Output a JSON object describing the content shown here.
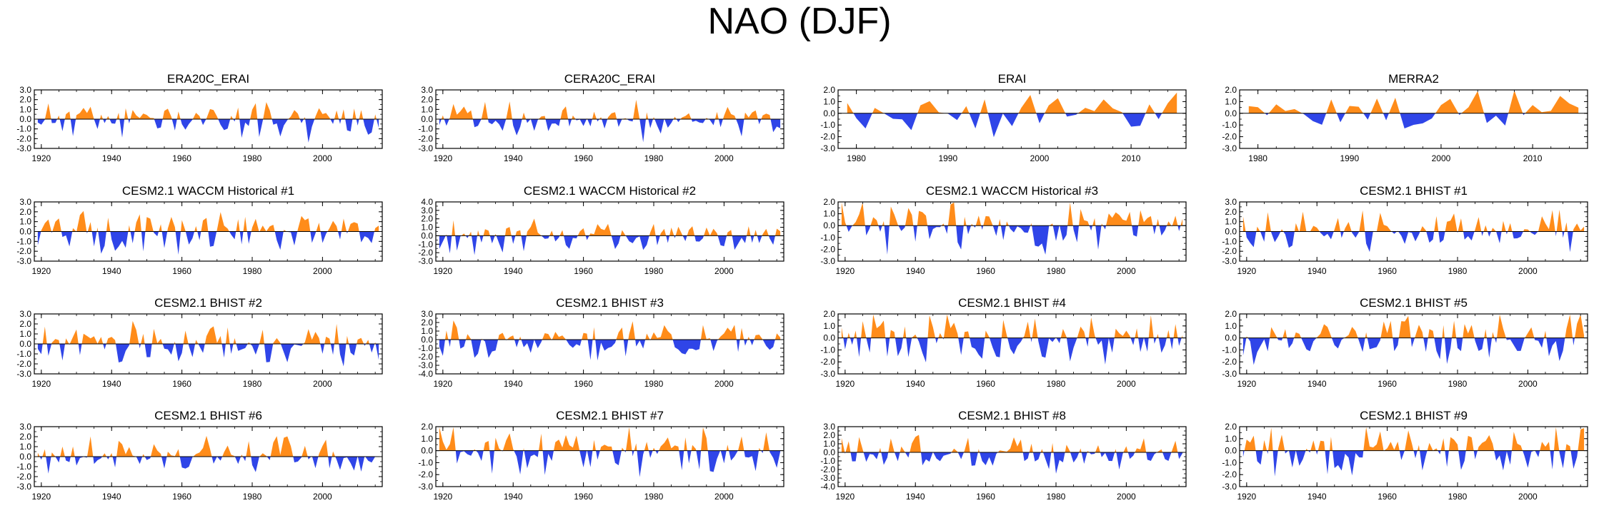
{
  "figure": {
    "title": "NAO (DJF)"
  },
  "colors": {
    "positive": "#ff8c1a",
    "negative": "#2f45e8",
    "frame": "#000000"
  },
  "chart_data": [
    {
      "title": "ERA20C_ERAI",
      "type": "area",
      "xrange": [
        1918,
        2017
      ],
      "xticks": [
        1920,
        1940,
        1960,
        1980,
        2000
      ],
      "yticks": [
        "3.0",
        "2.0",
        "1.0",
        "0.0",
        "-1.0",
        "-2.0",
        "-3.0"
      ],
      "ylim": [
        -3,
        3
      ],
      "seed": 11,
      "amp": 1.3
    },
    {
      "title": "CERA20C_ERAI",
      "type": "area",
      "xrange": [
        1918,
        2017
      ],
      "xticks": [
        1920,
        1940,
        1960,
        1980,
        2000
      ],
      "yticks": [
        "3.0",
        "2.0",
        "1.0",
        "0.0",
        "-1.0",
        "-2.0",
        "-3.0"
      ],
      "ylim": [
        -3,
        3
      ],
      "seed": 12,
      "amp": 1.3
    },
    {
      "title": "ERAI",
      "type": "area",
      "xrange": [
        1978,
        2016
      ],
      "xticks": [
        1980,
        1990,
        2000,
        2010
      ],
      "yticks": [
        "2.0",
        "1.0",
        "0.0",
        "-1.0",
        "-2.0",
        "-3.0"
      ],
      "ylim": [
        -3,
        2
      ],
      "seed": 13,
      "amp": 1.3
    },
    {
      "title": "MERRA2",
      "type": "area",
      "xrange": [
        1978,
        2016
      ],
      "xticks": [
        1980,
        1990,
        2000,
        2010
      ],
      "yticks": [
        "2.0",
        "1.0",
        "0.0",
        "-1.0",
        "-2.0",
        "-3.0"
      ],
      "ylim": [
        -3,
        2
      ],
      "seed": 14,
      "amp": 1.3
    },
    {
      "title": "CESM2.1 WACCM Historical #1",
      "type": "area",
      "xrange": [
        1918,
        2017
      ],
      "xticks": [
        1920,
        1940,
        1960,
        1980,
        2000
      ],
      "yticks": [
        "3.0",
        "2.0",
        "1.0",
        "0.0",
        "-1.0",
        "-2.0",
        "-3.0"
      ],
      "ylim": [
        -3,
        3
      ],
      "seed": 21,
      "amp": 1.4
    },
    {
      "title": "CESM2.1 WACCM Historical #2",
      "type": "area",
      "xrange": [
        1918,
        2017
      ],
      "xticks": [
        1920,
        1940,
        1960,
        1980,
        2000
      ],
      "yticks": [
        "4.0",
        "3.0",
        "2.0",
        "1.0",
        "0.0",
        "-1.0",
        "-2.0",
        "-3.0"
      ],
      "ylim": [
        -3,
        4
      ],
      "seed": 22,
      "amp": 1.3
    },
    {
      "title": "CESM2.1 WACCM Historical #3",
      "type": "area",
      "xrange": [
        1918,
        2017
      ],
      "xticks": [
        1920,
        1940,
        1960,
        1980,
        2000
      ],
      "yticks": [
        "2.0",
        "1.0",
        "0.0",
        "-1.0",
        "-2.0",
        "-3.0"
      ],
      "ylim": [
        -3,
        2
      ],
      "seed": 23,
      "amp": 1.5
    },
    {
      "title": "CESM2.1 BHIST #1",
      "type": "area",
      "xrange": [
        1918,
        2017
      ],
      "xticks": [
        1920,
        1940,
        1960,
        1980,
        2000
      ],
      "yticks": [
        "3.0",
        "2.0",
        "1.0",
        "0.0",
        "-1.0",
        "-2.0",
        "-3.0"
      ],
      "ylim": [
        -3,
        3
      ],
      "seed": 24,
      "amp": 1.4
    },
    {
      "title": "CESM2.1 BHIST #2",
      "type": "area",
      "xrange": [
        1918,
        2017
      ],
      "xticks": [
        1920,
        1940,
        1960,
        1980,
        2000
      ],
      "yticks": [
        "3.0",
        "2.0",
        "1.0",
        "0.0",
        "-1.0",
        "-2.0",
        "-3.0"
      ],
      "ylim": [
        -3,
        3
      ],
      "seed": 31,
      "amp": 1.4
    },
    {
      "title": "CESM2.1 BHIST #3",
      "type": "area",
      "xrange": [
        1918,
        2017
      ],
      "xticks": [
        1920,
        1940,
        1960,
        1980,
        2000
      ],
      "yticks": [
        "3.0",
        "2.0",
        "1.0",
        "0.0",
        "-1.0",
        "-2.0",
        "-3.0",
        "-4.0"
      ],
      "ylim": [
        -4,
        3
      ],
      "seed": 32,
      "amp": 1.4
    },
    {
      "title": "CESM2.1 BHIST #4",
      "type": "area",
      "xrange": [
        1918,
        2017
      ],
      "xticks": [
        1920,
        1940,
        1960,
        1980,
        2000
      ],
      "yticks": [
        "2.0",
        "1.0",
        "0.0",
        "-1.0",
        "-2.0",
        "-3.0"
      ],
      "ylim": [
        -3,
        2
      ],
      "seed": 33,
      "amp": 1.5
    },
    {
      "title": "CESM2.1 BHIST #5",
      "type": "area",
      "xrange": [
        1918,
        2017
      ],
      "xticks": [
        1920,
        1940,
        1960,
        1980,
        2000
      ],
      "yticks": [
        "2.0",
        "1.0",
        "0.0",
        "-1.0",
        "-2.0",
        "-3.0"
      ],
      "ylim": [
        -3,
        2
      ],
      "seed": 34,
      "amp": 1.5
    },
    {
      "title": "CESM2.1 BHIST #6",
      "type": "area",
      "xrange": [
        1918,
        2017
      ],
      "xticks": [
        1920,
        1940,
        1960,
        1980,
        2000
      ],
      "yticks": [
        "3.0",
        "2.0",
        "1.0",
        "0.0",
        "-1.0",
        "-2.0",
        "-3.0"
      ],
      "ylim": [
        -3,
        3
      ],
      "seed": 41,
      "amp": 1.4
    },
    {
      "title": "CESM2.1 BHIST #7",
      "type": "area",
      "xrange": [
        1918,
        2017
      ],
      "xticks": [
        1920,
        1940,
        1960,
        1980,
        2000
      ],
      "yticks": [
        "2.0",
        "1.0",
        "0.0",
        "-1.0",
        "-2.0",
        "-3.0"
      ],
      "ylim": [
        -3,
        2
      ],
      "seed": 42,
      "amp": 1.5
    },
    {
      "title": "CESM2.1 BHIST #8",
      "type": "area",
      "xrange": [
        1918,
        2017
      ],
      "xticks": [
        1920,
        1940,
        1960,
        1980,
        2000
      ],
      "yticks": [
        "3.0",
        "2.0",
        "1.0",
        "0.0",
        "-1.0",
        "-2.0",
        "-3.0",
        "-4.0"
      ],
      "ylim": [
        -4,
        3
      ],
      "seed": 43,
      "amp": 1.4
    },
    {
      "title": "CESM2.1 BHIST #9",
      "type": "area",
      "xrange": [
        1918,
        2017
      ],
      "xticks": [
        1920,
        1940,
        1960,
        1980,
        2000
      ],
      "yticks": [
        "2.0",
        "1.0",
        "0.0",
        "-1.0",
        "-2.0",
        "-3.0"
      ],
      "ylim": [
        -3,
        2
      ],
      "seed": 44,
      "amp": 1.5
    }
  ]
}
